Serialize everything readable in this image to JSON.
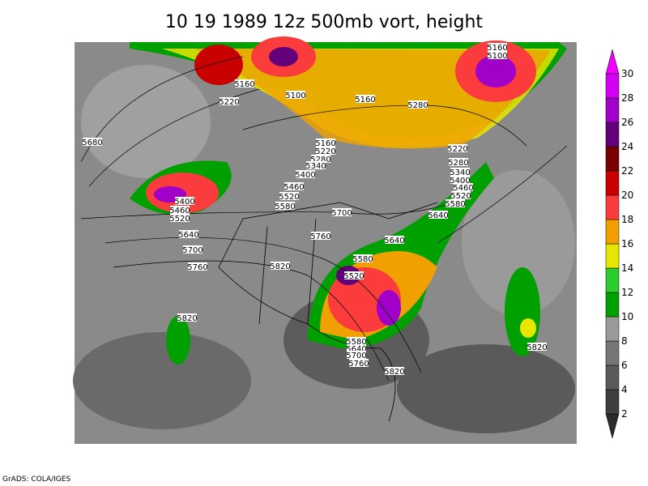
{
  "title": "10 19 1989 12z 500mb vort, height",
  "footer": "GrADS: COLA/IGES",
  "colorbar": {
    "levels": [
      2,
      4,
      6,
      8,
      10,
      12,
      14,
      16,
      18,
      20,
      22,
      24,
      26,
      28,
      30
    ],
    "colors": [
      "#2a2a2a",
      "#3e3e3e",
      "#5a5a5a",
      "#767676",
      "#9a9a9a",
      "#00a000",
      "#2ccc2c",
      "#e6e600",
      "#f0a000",
      "#fa3c3c",
      "#c80000",
      "#780000",
      "#64007a",
      "#a000c8",
      "#d200f0",
      "#f000ff"
    ]
  },
  "contour_labels": [
    "5160",
    "5100",
    "5160",
    "5100",
    "5220",
    "5160",
    "5280",
    "5680",
    "5160",
    "5220",
    "5280",
    "5340",
    "5400",
    "5460",
    "5520",
    "5580",
    "5400",
    "5460",
    "5520",
    "5700",
    "5640",
    "5760",
    "5700",
    "5760",
    "5820",
    "5220",
    "5280",
    "5340",
    "5400",
    "5460",
    "5520",
    "5580",
    "5640",
    "5640",
    "5580",
    "5520",
    "5820",
    "5820",
    "5580",
    "5640",
    "5700",
    "5760",
    "5820"
  ]
}
